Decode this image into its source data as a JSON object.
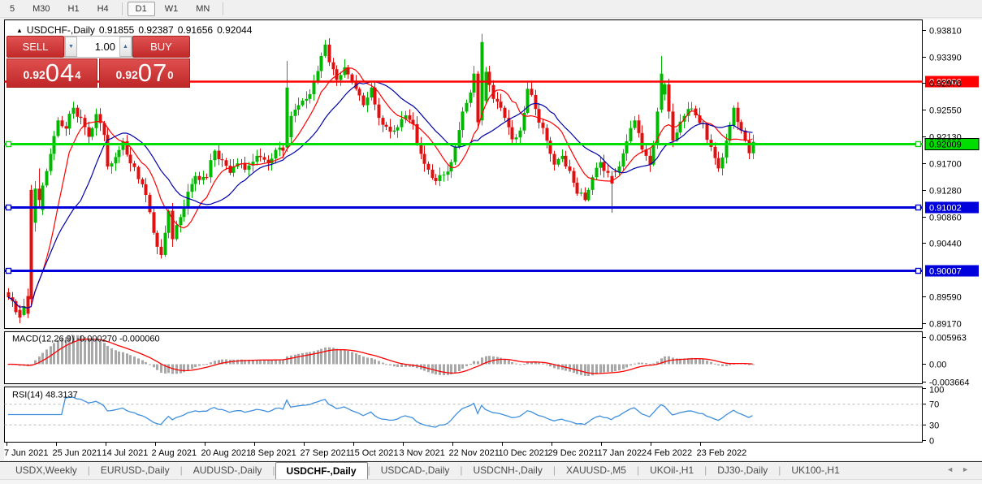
{
  "toolbar": {
    "timeframes": [
      "5",
      "M30",
      "H1",
      "H4",
      "D1",
      "W1",
      "MN"
    ],
    "active_timeframe": "D1",
    "separators_after": [
      "H4",
      "MN"
    ]
  },
  "title": {
    "arrow": "▲",
    "symbol": "USDCHF-,Daily",
    "open": "0.91855",
    "high": "0.92387",
    "low": "0.91656",
    "close": "0.92044"
  },
  "trade": {
    "sell_label": "SELL",
    "buy_label": "BUY",
    "volume": "1.00",
    "volume_down_icon": "▼",
    "volume_up_icon": "▲",
    "sell_price": {
      "prefix": "0.92",
      "big": "04",
      "sup": "4"
    },
    "buy_price": {
      "prefix": "0.92",
      "big": "07",
      "sup": "0"
    }
  },
  "chart_data": {
    "type": "candlestick",
    "symbol": "USDCHF",
    "timeframe": "Daily",
    "price_axis": {
      "min": 0.8917,
      "max": 0.9381,
      "ticks": [
        "0.93810",
        "0.93390",
        "0.92970",
        "0.92550",
        "0.92130",
        "0.91700",
        "0.91280",
        "0.90860",
        "0.90440",
        "0.89590",
        "0.89170"
      ]
    },
    "x_labels": [
      "7 Jun 2021",
      "25 Jun 2021",
      "14 Jul 2021",
      "2 Aug 2021",
      "20 Aug 2021",
      "8 Sep 2021",
      "27 Sep 2021",
      "15 Oct 2021",
      "3 Nov 2021",
      "22 Nov 2021",
      "10 Dec 2021",
      "29 Dec 2021",
      "17 Jan 2022",
      "4 Feb 2022",
      "23 Feb 2022"
    ],
    "candle_count": 196,
    "close_anchors": [
      [
        0,
        0.8958
      ],
      [
        3,
        0.893
      ],
      [
        4,
        0.8944
      ],
      [
        9,
        0.9135
      ],
      [
        11,
        0.9185
      ],
      [
        13,
        0.9238
      ],
      [
        15,
        0.9225
      ],
      [
        17,
        0.9258
      ],
      [
        19,
        0.9242
      ],
      [
        21,
        0.9212
      ],
      [
        23,
        0.9248
      ],
      [
        25,
        0.9215
      ],
      [
        26,
        0.9165
      ],
      [
        28,
        0.918
      ],
      [
        30,
        0.9205
      ],
      [
        32,
        0.917
      ],
      [
        34,
        0.9145
      ],
      [
        36,
        0.912
      ],
      [
        38,
        0.906
      ],
      [
        39,
        0.9038
      ],
      [
        40,
        0.9025
      ],
      [
        41,
        0.906
      ],
      [
        42,
        0.9095
      ],
      [
        43,
        0.905
      ],
      [
        45,
        0.9085
      ],
      [
        47,
        0.9125
      ],
      [
        49,
        0.915
      ],
      [
        52,
        0.9148
      ],
      [
        54,
        0.919
      ],
      [
        56,
        0.9175
      ],
      [
        58,
        0.9155
      ],
      [
        60,
        0.917
      ],
      [
        62,
        0.916
      ],
      [
        65,
        0.9182
      ],
      [
        68,
        0.917
      ],
      [
        71,
        0.9195
      ],
      [
        72,
        0.919
      ],
      [
        74,
        0.9245
      ],
      [
        76,
        0.9262
      ],
      [
        78,
        0.9272
      ],
      [
        80,
        0.93
      ],
      [
        82,
        0.934
      ],
      [
        83,
        0.9358
      ],
      [
        84,
        0.933
      ],
      [
        86,
        0.9302
      ],
      [
        88,
        0.9322
      ],
      [
        90,
        0.9298
      ],
      [
        91,
        0.9288
      ],
      [
        93,
        0.9262
      ],
      [
        95,
        0.929
      ],
      [
        97,
        0.9242
      ],
      [
        99,
        0.9228
      ],
      [
        101,
        0.9222
      ],
      [
        103,
        0.924
      ],
      [
        104,
        0.9246
      ],
      [
        106,
        0.9232
      ],
      [
        108,
        0.9185
      ],
      [
        110,
        0.916
      ],
      [
        112,
        0.9142
      ],
      [
        114,
        0.9152
      ],
      [
        116,
        0.9172
      ],
      [
        117,
        0.9196
      ],
      [
        119,
        0.9252
      ],
      [
        121,
        0.9282
      ],
      [
        122,
        0.9312
      ],
      [
        123,
        0.9235
      ],
      [
        125,
        0.9315
      ],
      [
        127,
        0.9272
      ],
      [
        129,
        0.9258
      ],
      [
        130,
        0.9242
      ],
      [
        132,
        0.9208
      ],
      [
        134,
        0.9222
      ],
      [
        136,
        0.9288
      ],
      [
        138,
        0.9256
      ],
      [
        140,
        0.9226
      ],
      [
        142,
        0.9185
      ],
      [
        143,
        0.9168
      ],
      [
        145,
        0.9182
      ],
      [
        147,
        0.9158
      ],
      [
        149,
        0.9122
      ],
      [
        151,
        0.9112
      ],
      [
        153,
        0.9148
      ],
      [
        155,
        0.9172
      ],
      [
        156,
        0.9158
      ],
      [
        160,
        0.9165
      ],
      [
        162,
        0.9205
      ],
      [
        164,
        0.9238
      ],
      [
        166,
        0.9192
      ],
      [
        168,
        0.9168
      ],
      [
        169,
        0.9202
      ],
      [
        170,
        0.9252
      ],
      [
        172,
        0.9295
      ],
      [
        173,
        0.9252
      ],
      [
        174,
        0.9206
      ],
      [
        176,
        0.9236
      ],
      [
        178,
        0.9256
      ],
      [
        180,
        0.9246
      ],
      [
        182,
        0.9232
      ],
      [
        184,
        0.9196
      ],
      [
        186,
        0.9162
      ],
      [
        188,
        0.9206
      ],
      [
        190,
        0.9258
      ],
      [
        192,
        0.9222
      ],
      [
        194,
        0.9186
      ],
      [
        195,
        0.9204
      ]
    ],
    "special_candles": [
      [
        3,
        0.8938,
        0.8946,
        0.8917,
        0.8926
      ],
      [
        5,
        0.896,
        0.8972,
        0.8925,
        0.8932
      ],
      [
        6,
        0.9128,
        0.9136,
        0.8946,
        0.8955
      ],
      [
        7,
        0.9076,
        0.9142,
        0.9062,
        0.913
      ],
      [
        8,
        0.913,
        0.9162,
        0.9098,
        0.9112
      ],
      [
        73,
        0.9195,
        0.9332,
        0.9188,
        0.929
      ],
      [
        124,
        0.9238,
        0.9375,
        0.923,
        0.9362
      ],
      [
        158,
        0.915,
        0.9158,
        0.9092,
        0.9138
      ],
      [
        171,
        0.9255,
        0.934,
        0.925,
        0.9312
      ]
    ],
    "hlines": [
      {
        "price": 0.93006,
        "label": "0.93006",
        "color": "#ff0000",
        "text_color": "#ffffff",
        "width": 2.4,
        "markers": false
      },
      {
        "price": 0.92009,
        "label": "0.92009",
        "color": "#00dd00",
        "text_color": "#000000",
        "width": 3,
        "markers": true
      },
      {
        "price": 0.91002,
        "label": "0.91002",
        "color": "#0000dd",
        "text_color": "#ffffff",
        "width": 3,
        "markers": true
      },
      {
        "price": 0.90007,
        "label": "0.90007",
        "color": "#0000dd",
        "text_color": "#ffffff",
        "width": 3,
        "markers": true
      }
    ],
    "moving_averages": [
      {
        "type": "sma",
        "period": 10,
        "color": "#ff0000"
      },
      {
        "type": "sma",
        "period": 20,
        "color": "#0000a8"
      }
    ],
    "macd": {
      "label": "MACD(12,26,9)",
      "value_main": "-0.000270",
      "value_signal": "-0.000060",
      "ticks": [
        "0.005963",
        "0.00",
        "-0.003664"
      ],
      "tick_values": [
        0.005963,
        0,
        -0.003664
      ],
      "fast": 12,
      "slow": 26,
      "signal": 9,
      "hist_color": "#a8a8a8",
      "signal_color": "#ff0000"
    },
    "rsi": {
      "label": "RSI(14)",
      "value": "48.3137",
      "period": 14,
      "ticks": [
        "100",
        "70",
        "30",
        "0"
      ],
      "tick_values": [
        100,
        70,
        30,
        0
      ],
      "levels": [
        70,
        30
      ],
      "color": "#3f8fdd",
      "level_color": "#bbbbbb"
    },
    "colors": {
      "up": "#00b800",
      "down": "#e01010",
      "background": "#ffffff",
      "border": "#000000"
    }
  },
  "tabs": {
    "items": [
      "USDX,Weekly",
      "EURUSD-,Daily",
      "AUDUSD-,Daily",
      "USDCHF-,Daily",
      "USDCAD-,Daily",
      "USDCNH-,Daily",
      "XAUUSD-,M5",
      "UKOil-,H1",
      "DJ30-,Daily",
      "UK100-,H1"
    ],
    "active_index": 3,
    "scroll_left_icon": "◄",
    "scroll_right_icon": "►"
  }
}
